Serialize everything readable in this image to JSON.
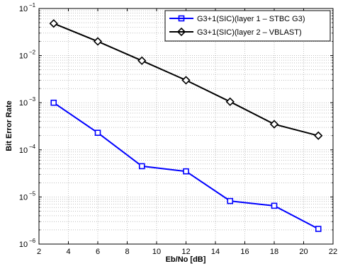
{
  "chart_data": {
    "type": "line",
    "xlabel": "Eb/No [dB]",
    "ylabel": "Bit Error Rate",
    "xlim": [
      2,
      22
    ],
    "ylim_log10": [
      -6,
      -1
    ],
    "y_scale": "log",
    "grid": true,
    "legend_position": "top-right",
    "x_ticks": [
      2,
      4,
      6,
      8,
      10,
      12,
      14,
      16,
      18,
      20,
      22
    ],
    "x_tick_labels": [
      "2",
      "4",
      "6",
      "8",
      "10",
      "12",
      "14",
      "16",
      "18",
      "20",
      "22"
    ],
    "y_tick_exponents": [
      -6,
      -5,
      -4,
      -3,
      -2,
      -1
    ],
    "y_tick_base": "10",
    "series": [
      {
        "name": "G3+1(SIC)(layer 1 – STBC G3)",
        "color": "#0000ff",
        "marker": "square",
        "x": [
          3,
          6,
          9,
          12,
          15,
          18,
          21
        ],
        "y": [
          0.001,
          0.00023,
          4.5e-05,
          3.5e-05,
          8.2e-06,
          6.5e-06,
          2.1e-06
        ]
      },
      {
        "name": "G3+1(SIC)(layer 2 – VBLAST)",
        "color": "#000000",
        "marker": "diamond",
        "x": [
          3,
          6,
          9,
          12,
          15,
          18,
          21
        ],
        "y": [
          0.048,
          0.02,
          0.0078,
          0.003,
          0.00105,
          0.00035,
          0.0002
        ]
      }
    ]
  }
}
